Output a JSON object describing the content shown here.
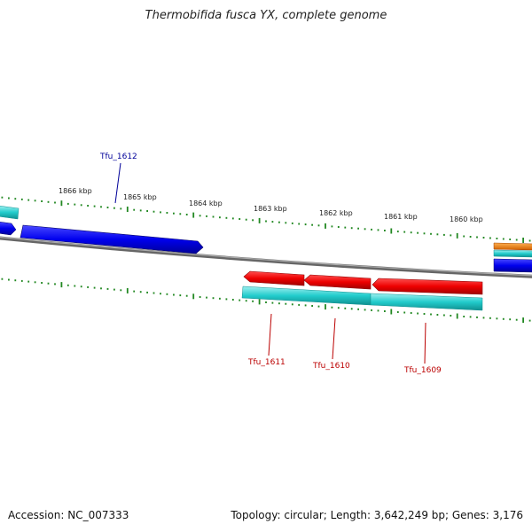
{
  "title": "Thermobifida fusca YX, complete genome",
  "accession": "Accession: NC_007333",
  "summary": "Topology: circular; Length: 3,642,249 bp; Genes: 3,176",
  "colors": {
    "plus_gene": "#0000ee",
    "minus_gene": "#ee0000",
    "cds": "#22cccc",
    "other_feature": "#f08000",
    "backbone": "#888888",
    "ruler": "#228822",
    "label_plus": "#000099",
    "label_minus": "#bb0000"
  },
  "ruler": {
    "unit": "kbp",
    "positions_kbp": [
      1866,
      1865,
      1864,
      1863,
      1862,
      1861,
      1860
    ],
    "labels": [
      "1866 kbp",
      "1865 kbp",
      "1864 kbp",
      "1863 kbp",
      "1862 kbp",
      "1861 kbp",
      "1860 kbp"
    ]
  },
  "genes": [
    {
      "label": "Tfu_1612",
      "strand": "+",
      "color": "#0000ee"
    },
    {
      "label": "Tfu_1611",
      "strand": "-",
      "color": "#ee0000"
    },
    {
      "label": "Tfu_1610",
      "strand": "-",
      "color": "#ee0000"
    },
    {
      "label": "Tfu_1609",
      "strand": "-",
      "color": "#ee0000"
    }
  ]
}
